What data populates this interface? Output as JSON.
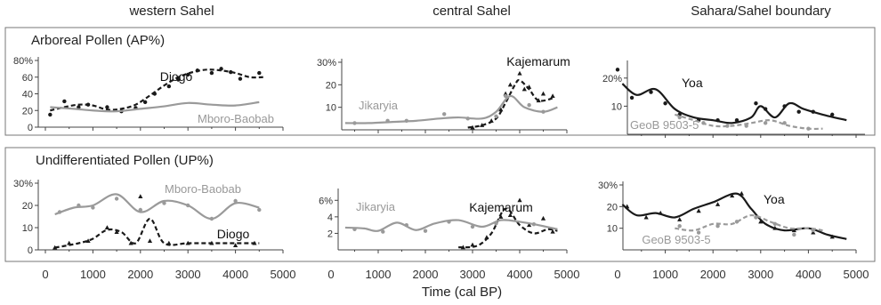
{
  "column_titles": [
    "western Sahel",
    "central Sahel",
    "Sahara/Sahel boundary"
  ],
  "row_titles": [
    "Arboreal Pollen (AP%)",
    "Undifferentiated Pollen (UP%)"
  ],
  "x_axis": {
    "label": "Time (cal BP)",
    "ticks": [
      "0",
      "1000",
      "2000",
      "3000",
      "4000",
      "5000"
    ]
  },
  "colors": {
    "black_series": "#1a1a1a",
    "grey_series": "#9a9a9a",
    "frame": "#777777"
  },
  "chart_data": [
    {
      "type": "line",
      "row": 0,
      "col": 0,
      "ylim": [
        0,
        80
      ],
      "yticks": [
        "80%",
        "60",
        "40",
        "20",
        "0"
      ],
      "xlim": [
        0,
        5000
      ],
      "series": [
        {
          "name": "Diogo",
          "color": "#1a1a1a",
          "dash": true,
          "x": [
            100,
            400,
            700,
            1000,
            1300,
            1600,
            1900,
            2200,
            2500,
            2800,
            3100,
            3400,
            3700,
            4000,
            4300,
            4600
          ],
          "y": [
            20,
            24,
            27,
            26,
            21,
            22,
            27,
            38,
            50,
            60,
            66,
            69,
            68,
            65,
            60,
            60
          ],
          "points_x": [
            100,
            400,
            700,
            900,
            1300,
            1600,
            1900,
            2100,
            2300,
            2600,
            2800,
            3000,
            3200,
            3500,
            3700,
            3900,
            4100,
            4500
          ],
          "points_y": [
            15,
            31,
            24,
            27,
            24,
            19,
            23,
            30,
            40,
            49,
            57,
            63,
            68,
            65,
            70,
            66,
            58,
            65
          ]
        },
        {
          "name": "Mboro-Baobab",
          "color": "#9a9a9a",
          "dash": false,
          "x": [
            100,
            600,
            1000,
            1500,
            2000,
            2500,
            3000,
            3500,
            4000,
            4500
          ],
          "y": [
            24,
            22,
            20,
            19,
            22,
            25,
            29,
            27,
            26,
            30
          ],
          "points_x": [],
          "points_y": []
        }
      ]
    },
    {
      "type": "line",
      "row": 0,
      "col": 1,
      "ylim": [
        0,
        30
      ],
      "yticks": [
        "30%",
        "20",
        "10"
      ],
      "xlim": [
        0,
        5000
      ],
      "series": [
        {
          "name": "Kajemarum",
          "color": "#1a1a1a",
          "dash": true,
          "x": [
            2900,
            3200,
            3500,
            3700,
            3900,
            4000,
            4200,
            4400,
            4700
          ],
          "y": [
            1,
            2,
            5,
            12,
            20,
            22,
            18,
            13,
            14
          ],
          "points_x": [
            3000,
            3200,
            3400,
            3600,
            3700,
            3800,
            4000,
            4100,
            4200,
            4400,
            4500,
            4700
          ],
          "points_y": [
            1,
            2,
            4,
            9,
            16,
            20,
            25,
            18,
            19,
            13,
            16,
            15
          ]
        },
        {
          "name": "Jikaryia",
          "color": "#9a9a9a",
          "dash": false,
          "x": [
            300,
            800,
            1300,
            1800,
            2300,
            2700,
            3200,
            3500,
            3800,
            4100,
            4500,
            4800
          ],
          "y": [
            3,
            3,
            3.5,
            4,
            5,
            5.5,
            5,
            8,
            15,
            10,
            8,
            10
          ],
          "points_x": [
            500,
            1200,
            1600,
            2400,
            2900,
            3500,
            3700,
            4200,
            4500
          ],
          "points_y": [
            3,
            4,
            4,
            7,
            5,
            6,
            15,
            11,
            8
          ]
        }
      ]
    },
    {
      "type": "line",
      "row": 0,
      "col": 2,
      "ylim": [
        0,
        25
      ],
      "yticks": [
        "20%",
        "10"
      ],
      "xlim": [
        0,
        5000
      ],
      "series": [
        {
          "name": "Yoa",
          "color": "#1a1a1a",
          "dash": false,
          "x": [
            100,
            400,
            800,
            1200,
            1600,
            2000,
            2400,
            2800,
            3000,
            3300,
            3600,
            3900,
            4300,
            4800
          ],
          "y": [
            18,
            14,
            16,
            9,
            6,
            5,
            4,
            6,
            10,
            6,
            11,
            9,
            7,
            5
          ],
          "points_x": [
            0,
            300,
            700,
            1000,
            1300,
            1700,
            2100,
            2500,
            2900,
            3100,
            3500,
            3800,
            4100,
            4500
          ],
          "points_y": [
            23,
            13,
            15,
            11,
            7,
            5,
            5,
            5,
            11,
            9,
            10,
            8,
            8,
            7
          ]
        },
        {
          "name": "GeoB 9503-5",
          "color": "#9a9a9a",
          "dash": true,
          "x": [
            1200,
            1600,
            2000,
            2400,
            2800,
            3200,
            3600,
            4000,
            4300
          ],
          "y": [
            7,
            5,
            3,
            3,
            4,
            5,
            3,
            2,
            2
          ],
          "points_x": [
            1300,
            1800,
            2300,
            2700,
            3100,
            3500,
            4000
          ],
          "points_y": [
            6,
            4,
            3,
            3,
            4,
            4,
            2
          ]
        }
      ]
    },
    {
      "type": "line",
      "row": 1,
      "col": 0,
      "ylim": [
        0,
        30
      ],
      "yticks": [
        "30%",
        "20",
        "10",
        "0"
      ],
      "xlim": [
        0,
        5000
      ],
      "series": [
        {
          "name": "Mboro-Baobab",
          "color": "#9a9a9a",
          "dash": false,
          "x": [
            200,
            600,
            1000,
            1500,
            2000,
            2500,
            3000,
            3500,
            4000,
            4500
          ],
          "y": [
            16,
            19,
            20,
            25,
            17,
            22,
            20,
            14,
            21,
            19
          ],
          "points_x": [
            300,
            700,
            1000,
            1500,
            2000,
            2500,
            3000,
            3500,
            4000,
            4500
          ],
          "points_y": [
            17,
            20,
            19,
            23,
            18,
            21,
            20,
            14,
            22,
            18
          ]
        },
        {
          "name": "Diogo",
          "color": "#1a1a1a",
          "dash": true,
          "x": [
            200,
            700,
            1000,
            1300,
            1600,
            1900,
            2200,
            2500,
            3000,
            3500,
            4000,
            4500
          ],
          "y": [
            1,
            3,
            5,
            9,
            8,
            3,
            14,
            3,
            3,
            3,
            3,
            3
          ],
          "points_x": [
            200,
            500,
            900,
            1300,
            1500,
            1800,
            2000,
            2200,
            2600,
            3000,
            3500,
            4000,
            4400
          ],
          "points_y": [
            1,
            3,
            4,
            10,
            8,
            3,
            24,
            4,
            3,
            3,
            3,
            2,
            3
          ]
        }
      ]
    },
    {
      "type": "line",
      "row": 1,
      "col": 1,
      "ylim": [
        0,
        7
      ],
      "yticks": [
        "6%",
        "4",
        "2"
      ],
      "xlim": [
        0,
        5000
      ],
      "series": [
        {
          "name": "Kajemarum",
          "color": "#1a1a1a",
          "dash": true,
          "x": [
            2700,
            3100,
            3400,
            3700,
            4000,
            4300,
            4600,
            4800
          ],
          "y": [
            0.3,
            0.5,
            2,
            5,
            3,
            2,
            2.5,
            2.3
          ],
          "points_x": [
            2800,
            3000,
            3300,
            3600,
            3800,
            4000,
            4200,
            4500,
            4700
          ],
          "points_y": [
            0.3,
            0.6,
            1.5,
            4,
            4.2,
            6,
            3,
            3.8,
            2.2
          ]
        },
        {
          "name": "Jikaryia",
          "color": "#9a9a9a",
          "dash": false,
          "x": [
            300,
            700,
            1000,
            1400,
            1800,
            2200,
            2700,
            3200,
            3600,
            4000,
            4400,
            4800
          ],
          "y": [
            2.7,
            2.6,
            2.3,
            3.3,
            2.4,
            3.2,
            3.6,
            2.8,
            3.6,
            3.4,
            3,
            2.5
          ],
          "points_x": [
            500,
            1100,
            1600,
            2000,
            2500,
            3000,
            3500,
            4300
          ],
          "points_y": [
            2.5,
            2.2,
            3,
            2.3,
            3.4,
            2.8,
            3.2,
            3.1
          ]
        }
      ]
    },
    {
      "type": "line",
      "row": 1,
      "col": 2,
      "ylim": [
        0,
        30
      ],
      "yticks": [
        "30%",
        "20",
        "10"
      ],
      "xlim": [
        0,
        5000
      ],
      "series": [
        {
          "name": "Yoa",
          "color": "#1a1a1a",
          "dash": false,
          "x": [
            100,
            400,
            800,
            1200,
            1600,
            2000,
            2500,
            2800,
            3100,
            3500,
            4000,
            4400,
            4800
          ],
          "y": [
            21,
            16,
            17,
            15,
            19,
            22,
            26,
            19,
            12,
            9,
            10,
            7,
            5
          ],
          "points_x": [
            200,
            600,
            900,
            1300,
            1700,
            2100,
            2400,
            2600,
            3000,
            3300,
            3700,
            4100,
            4500
          ],
          "points_y": [
            20,
            15,
            17,
            14,
            18,
            21,
            25,
            26,
            13,
            10,
            9,
            8,
            6
          ]
        },
        {
          "name": "GeoB 9503-5",
          "color": "#9a9a9a",
          "dash": true,
          "x": [
            1200,
            1600,
            2000,
            2400,
            2800,
            3200,
            3600,
            4000,
            4300
          ],
          "y": [
            10,
            9,
            12,
            12,
            16,
            13,
            10,
            10,
            9
          ],
          "points_x": [
            1300,
            1700,
            2100,
            2500,
            2900,
            3300,
            3700,
            4100
          ],
          "points_y": [
            11,
            8,
            11,
            13,
            15,
            12,
            7,
            9
          ]
        }
      ]
    }
  ]
}
